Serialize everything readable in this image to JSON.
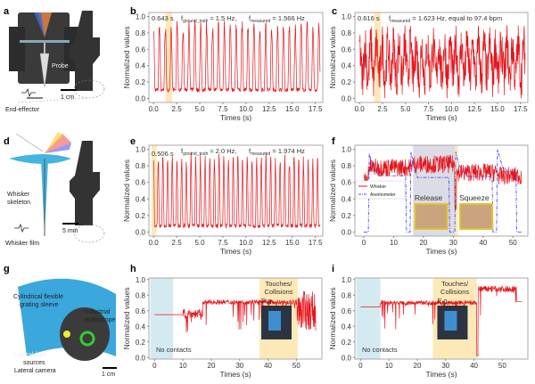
{
  "panel_labels": [
    "a",
    "b",
    "c",
    "d",
    "e",
    "f",
    "g",
    "h",
    "i"
  ],
  "illustrations": {
    "a": {
      "probe": "Probe",
      "scale": "1 cm",
      "end_effector": "End-effector"
    },
    "d": {
      "skeleton_1": "Whisker",
      "skeleton_2": "skeleton",
      "scale": "5 mm",
      "film": "Whisker film"
    },
    "g": {
      "sleeve_1": "Cylindrical flexible",
      "sleeve_2": "grating sleeve",
      "endo_1": "Industrial",
      "endo_2": "endoscope",
      "light_1": "Lateral light",
      "light_2": "sources",
      "camera": "Lateral camera",
      "scale": "1 cm"
    }
  },
  "colors": {
    "signal": "#e8141b",
    "anemometer": "#4a4ef0",
    "yellow": "#fde9b8",
    "blue": "#d4eaf1",
    "grey": "#dcdce6"
  },
  "chart_data": [
    {
      "id": "b",
      "type": "line",
      "xlabel": "Times (s)",
      "ylabel": "Normalized values",
      "xlim": [
        -0.5,
        18.3
      ],
      "ylim": [
        -0.05,
        1.05
      ],
      "xticks": [
        0,
        2.5,
        5,
        7.5,
        10,
        12.5,
        15,
        17.5
      ],
      "xtick_labels": [
        "0.0",
        "2.5",
        "5.0",
        "7.5",
        "10.0",
        "12.5",
        "15.0",
        "17.5"
      ],
      "yticks": [
        0,
        0.2,
        0.4,
        0.6,
        0.8,
        1.0
      ],
      "ytick_labels": [
        "0.0",
        "0.2",
        "0.4",
        "0.6",
        "0.8",
        "1.0"
      ],
      "signal": {
        "kind": "periodic",
        "freq_hz": 1.566,
        "min": 0.08,
        "max": 0.95,
        "duration": 18
      },
      "regions": [
        {
          "from": 1.3,
          "to": 2.0,
          "color": "yellow"
        }
      ],
      "annotations": {
        "period": "0.643 s",
        "f_gt": "f",
        "f_gt_sub": "ground_truth",
        "f_gt_val": " ≈ 1.5 Hz,",
        "f_m": "f",
        "f_m_sub": "measured",
        "f_m_val": " = 1.566 Hz"
      }
    },
    {
      "id": "c",
      "type": "line",
      "xlabel": "Times (s)",
      "ylabel": "Normalized values",
      "xlim": [
        -0.5,
        18.3
      ],
      "ylim": [
        -0.05,
        1.05
      ],
      "xticks": [
        0,
        2.5,
        5,
        7.5,
        10,
        12.5,
        15,
        17.5
      ],
      "xtick_labels": [
        "0.0",
        "2.5",
        "5.0",
        "7.5",
        "10.0",
        "12.5",
        "15.0",
        "17.5"
      ],
      "yticks": [
        0,
        0.2,
        0.4,
        0.6,
        0.8,
        1.0
      ],
      "ytick_labels": [
        "0.0",
        "0.2",
        "0.4",
        "0.6",
        "0.8",
        "1.0"
      ],
      "signal": {
        "kind": "noisy-periodic",
        "freq_hz": 1.623,
        "min": 0.05,
        "max": 0.95,
        "duration": 18
      },
      "regions": [
        {
          "from": 1.6,
          "to": 2.3,
          "color": "yellow"
        }
      ],
      "annotations": {
        "period": "0.616 s",
        "f_m": "f",
        "f_m_sub": "measured",
        "f_m_val": " = 1.623 Hz,  equal to 97.4 bpm"
      }
    },
    {
      "id": "e",
      "type": "line",
      "xlabel": "Times (s)",
      "ylabel": "Normalized values",
      "xlim": [
        -0.5,
        18.3
      ],
      "ylim": [
        -0.05,
        1.05
      ],
      "xticks": [
        0,
        2.5,
        5,
        7.5,
        10,
        12.5,
        15,
        17.5
      ],
      "xtick_labels": [
        "0.0",
        "2.5",
        "5.0",
        "7.5",
        "10.0",
        "12.5",
        "15.0",
        "17.5"
      ],
      "yticks": [
        0,
        0.2,
        0.4,
        0.6,
        0.8,
        1.0
      ],
      "ytick_labels": [
        "0.0",
        "0.2",
        "0.4",
        "0.6",
        "0.8",
        "1.0"
      ],
      "signal": {
        "kind": "periodic",
        "freq_hz": 1.974,
        "min": 0.05,
        "max": 0.95,
        "duration": 18
      },
      "regions": [
        {
          "from": -0.2,
          "to": 0.35,
          "color": "yellow"
        }
      ],
      "annotations": {
        "period": "0.506 s",
        "f_gt": "f",
        "f_gt_sub": "ground_truth",
        "f_gt_val": " ≈ 2.0 Hz,",
        "f_m": "f",
        "f_m_sub": "measured",
        "f_m_val": " = 1.974 Hz"
      }
    },
    {
      "id": "f",
      "type": "line",
      "xlabel": "Times (s)",
      "ylabel": "Normalized values",
      "xlim": [
        -3,
        55
      ],
      "ylim": [
        -0.05,
        1.05
      ],
      "xticks": [
        0,
        10,
        20,
        30,
        40,
        50
      ],
      "xtick_labels": [
        "0",
        "10",
        "20",
        "30",
        "40",
        "50"
      ],
      "yticks": [
        0,
        0.2,
        0.4,
        0.6,
        0.8,
        1.0
      ],
      "ytick_labels": [
        "0.0",
        "0.2",
        "0.4",
        "0.6",
        "0.8",
        "1.0"
      ],
      "legend": {
        "placement": "center-left",
        "entries": [
          "Whisker",
          "Anemometer"
        ]
      },
      "series": [
        {
          "name": "Whisker",
          "style": "solid",
          "segments": [
            [
              0,
              1.5,
              0.62
            ],
            [
              1.5,
              16,
              0.78
            ],
            [
              16,
              30.5,
              0.82
            ],
            [
              30.5,
              31,
              0.35
            ],
            [
              31,
              45,
              0.72
            ],
            [
              45,
              53,
              0.68
            ]
          ]
        },
        {
          "name": "Anemometer",
          "style": "dash-dot",
          "steps": [
            [
              0,
              0
            ],
            [
              1.5,
              0
            ],
            [
              1.8,
              0.95
            ],
            [
              3,
              0.8
            ],
            [
              5,
              0.68
            ],
            [
              14,
              0.68
            ],
            [
              14.3,
              0
            ],
            [
              15.5,
              0
            ],
            [
              15.8,
              0.97
            ],
            [
              17,
              0.75
            ],
            [
              18,
              0.66
            ],
            [
              28.5,
              0.66
            ],
            [
              28.8,
              0
            ],
            [
              30.5,
              0
            ],
            [
              30.8,
              0.97
            ],
            [
              32,
              0.8
            ],
            [
              35,
              0.67
            ],
            [
              43,
              0.67
            ],
            [
              43.3,
              0
            ],
            [
              44.5,
              0
            ],
            [
              44.8,
              1.0
            ],
            [
              46,
              0.85
            ],
            [
              47,
              0.73
            ],
            [
              51,
              0.73
            ],
            [
              51.3,
              0
            ],
            [
              53,
              0
            ]
          ]
        }
      ],
      "regions": [
        {
          "from": 16.5,
          "to": 30.5,
          "color": "grey"
        },
        {
          "from": 30.5,
          "to": 31.5,
          "color": "yellow"
        }
      ],
      "annotations": {
        "release": "Release",
        "squeeze": "Squeeze"
      }
    },
    {
      "id": "h",
      "type": "line",
      "xlabel": "Times (s)",
      "ylabel": "Normalized values",
      "xlim": [
        -2,
        59
      ],
      "ylim": [
        -0.02,
        1.02
      ],
      "xticks": [
        0,
        10,
        20,
        30,
        40,
        50
      ],
      "xtick_labels": [
        "0",
        "10",
        "20",
        "30",
        "40",
        "50"
      ],
      "yticks": [
        0,
        0.2,
        0.4,
        0.6,
        0.8,
        1.0
      ],
      "ytick_labels": [
        "0.0",
        "0.2",
        "0.4",
        "0.6",
        "0.8",
        "1.0"
      ],
      "segments": [
        [
          0,
          10,
          0.55,
          0.0
        ],
        [
          10,
          17,
          0.56,
          0.06
        ],
        [
          17,
          50,
          0.71,
          0.03
        ],
        [
          50,
          57,
          0.6,
          0.25
        ]
      ],
      "regions": [
        {
          "from": -1.5,
          "to": 6.5,
          "color": "blue"
        },
        {
          "from": 37,
          "to": 50.5,
          "color": "yellow"
        }
      ],
      "annotations": {
        "no_contacts": "No contacts",
        "touches": "Touches/",
        "collisions": "Collisions",
        "eg": "E.g."
      }
    },
    {
      "id": "i",
      "type": "line",
      "xlabel": "Times (s)",
      "ylabel": "Normalized values",
      "xlim": [
        -2,
        59
      ],
      "ylim": [
        -0.02,
        1.02
      ],
      "xticks": [
        0,
        10,
        20,
        30,
        40,
        50
      ],
      "xtick_labels": [
        "0",
        "10",
        "20",
        "30",
        "40",
        "50"
      ],
      "yticks": [
        0,
        0.2,
        0.4,
        0.6,
        0.8,
        1.0
      ],
      "ytick_labels": [
        "0.0",
        "0.2",
        "0.4",
        "0.6",
        "0.8",
        "1.0"
      ],
      "segments": [
        [
          0,
          7,
          0.65,
          0.0
        ],
        [
          7,
          41,
          0.7,
          0.03
        ],
        [
          41,
          41.5,
          0.02,
          0.0
        ],
        [
          41.5,
          55,
          0.88,
          0.04
        ],
        [
          55,
          57,
          0.72,
          0.0
        ]
      ],
      "regions": [
        {
          "from": -1.5,
          "to": 7,
          "color": "blue"
        },
        {
          "from": 25.5,
          "to": 41,
          "color": "yellow"
        }
      ],
      "annotations": {
        "no_contacts": "No contacts",
        "touches": "Touches/",
        "collisions": "Collisions",
        "eg": "E.g."
      }
    }
  ]
}
